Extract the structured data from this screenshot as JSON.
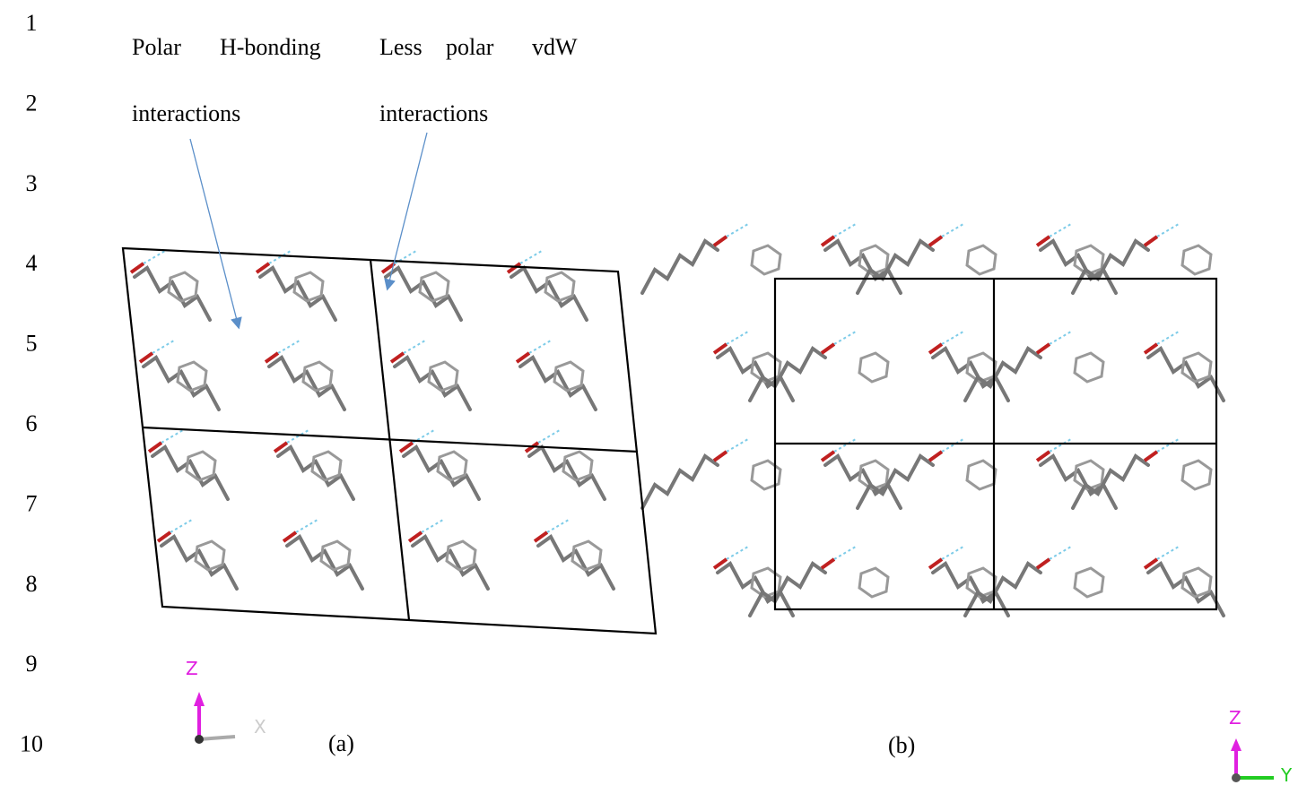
{
  "line_numbers": [
    "1",
    "2",
    "3",
    "4",
    "5",
    "6",
    "7",
    "8",
    "9",
    "10"
  ],
  "annotations": [
    {
      "words": [
        "Polar",
        "H-bonding"
      ],
      "line2": "interactions"
    },
    {
      "words": [
        "Less",
        "polar",
        "vdW"
      ],
      "line2": "interactions"
    }
  ],
  "panels": [
    {
      "caption": "(a)",
      "axes": [
        "Z",
        "X"
      ]
    },
    {
      "caption": "(b)",
      "axes": [
        "Z",
        "Y"
      ]
    }
  ]
}
